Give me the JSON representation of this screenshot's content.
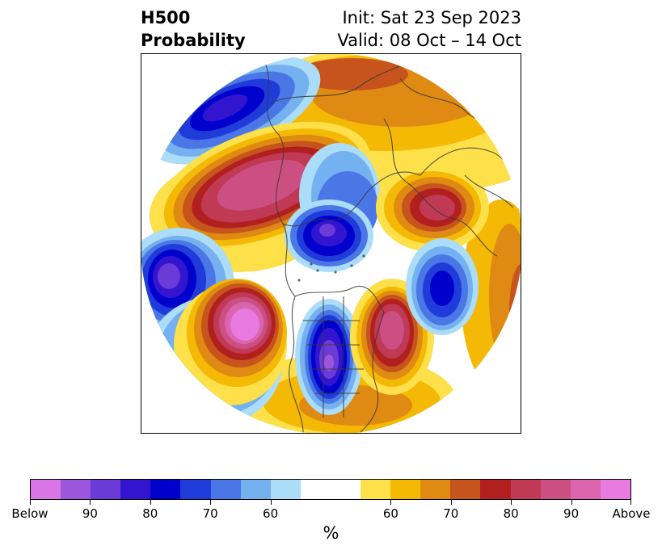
{
  "title": {
    "left_line1": "H500",
    "left_line2": "Probability",
    "right_line1": "Init: Sat 23 Sep 2023",
    "right_line2": "Valid: 08 Oct – 14 Oct"
  },
  "map": {
    "projection": "north-polar-stereographic",
    "anomaly_centers": [
      {
        "region": "Alaska / Yukon",
        "category": "Below",
        "peak": "90"
      },
      {
        "region": "Central Siberia",
        "category": "Above",
        "peak": "90"
      },
      {
        "region": "Arctic Ocean near pole",
        "category": "Below",
        "peak": "90"
      },
      {
        "region": "Northern Europe / Scandinavia",
        "category": "Above",
        "peak": "90"
      },
      {
        "region": "North Pacific west",
        "category": "Below",
        "peak": "90"
      },
      {
        "region": "Northeast Pacific / off NW North America",
        "category": "Above",
        "peak": "Above"
      },
      {
        "region": "Central / Eastern United States",
        "category": "Below",
        "peak": "90"
      },
      {
        "region": "North Atlantic / Greenland south",
        "category": "Above",
        "peak": "90"
      },
      {
        "region": "Northeast Atlantic",
        "category": "Below",
        "peak": "80"
      }
    ]
  },
  "colorbar": {
    "colors": [
      "#d975e6",
      "#9b56dd",
      "#6a3bd6",
      "#3415cf",
      "#0000cd",
      "#1f3bd9",
      "#4b76e5",
      "#75b0f0",
      "#abdcf8",
      "#ffffff",
      "#ffffff",
      "#fde04a",
      "#f4b904",
      "#df8a12",
      "#c6541c",
      "#b1201f",
      "#c03955",
      "#cc4f83",
      "#db64ae",
      "#e87ae0"
    ],
    "labels": [
      "Below",
      "90",
      "80",
      "70",
      "60",
      "60",
      "70",
      "80",
      "90",
      "Above"
    ],
    "unit": "%"
  }
}
